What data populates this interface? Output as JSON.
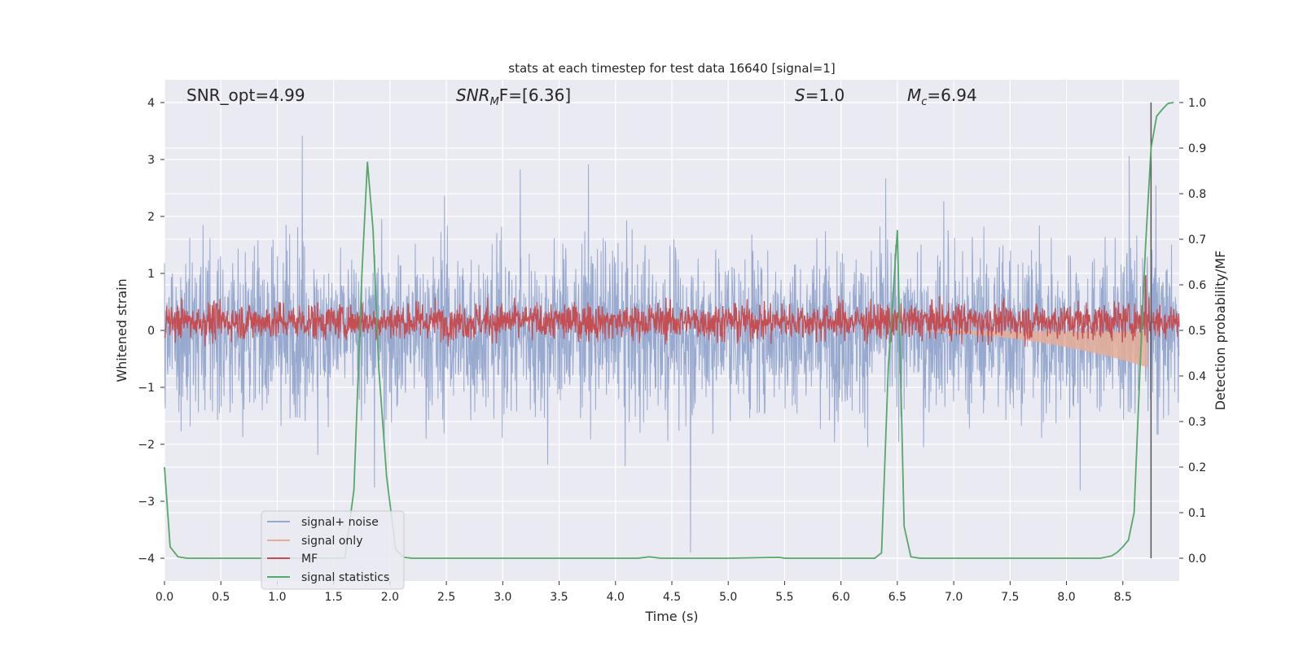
{
  "chart_data": {
    "type": "line",
    "title": "stats at each timestep for test data 16640 [signal=1]",
    "xlabel": "Time (s)",
    "ylabel_left": "Whitened strain",
    "ylabel_right": "Detection probability/MF",
    "xlim": [
      0.0,
      9.0
    ],
    "ylim_left": [
      -4.4,
      4.4
    ],
    "ylim_right": [
      -0.05,
      1.05
    ],
    "xticks": [
      0.0,
      0.5,
      1.0,
      1.5,
      2.0,
      2.5,
      3.0,
      3.5,
      4.0,
      4.5,
      5.0,
      5.5,
      6.0,
      6.5,
      7.0,
      7.5,
      8.0,
      8.5
    ],
    "xtick_labels": [
      "0.0",
      "0.5",
      "1.0",
      "1.5",
      "2.0",
      "2.5",
      "3.0",
      "3.5",
      "4.0",
      "4.5",
      "5.0",
      "5.5",
      "6.0",
      "6.5",
      "7.0",
      "7.5",
      "8.0",
      "8.5"
    ],
    "yticks_left": [
      4,
      3,
      2,
      1,
      0,
      -1,
      -2,
      -3,
      -4
    ],
    "ytick_labels_left": [
      "4",
      "3",
      "2",
      "1",
      "0",
      "−1",
      "−2",
      "−3",
      "−4"
    ],
    "yticks_right": [
      1.0,
      0.9,
      0.8,
      0.7,
      0.6,
      0.5,
      0.4,
      0.3,
      0.2,
      0.1,
      0.0
    ],
    "ytick_labels_right": [
      "1.0",
      "0.9",
      "0.8",
      "0.7",
      "0.6",
      "0.5",
      "0.4",
      "0.3",
      "0.2",
      "0.1",
      "0.0"
    ],
    "grid": true,
    "legend_position": "lower-left",
    "annotations": [
      {
        "text": "SNR_opt=4.99"
      },
      {
        "text": "SNR",
        "italic": true,
        "sub": "M",
        "rest": "F=[6.36]"
      },
      {
        "text": "S",
        "italic": true,
        "rest": "=1.0"
      },
      {
        "text": "M",
        "italic": true,
        "sub": "c",
        "rest": "=6.94"
      }
    ],
    "series": [
      {
        "name": "signal+ noise",
        "color": "#97a9cf",
        "axis": "left",
        "kind": "noise",
        "envelope_typical": [
          -1.5,
          1.8
        ],
        "extremes": [
          -3.9,
          4.0
        ]
      },
      {
        "name": "signal only",
        "color": "#e6ae98",
        "axis": "left",
        "kind": "chirp",
        "x_start": 6.0,
        "x_end": 8.72,
        "min_value": -0.65
      },
      {
        "name": "MF",
        "color": "#c44e52",
        "axis": "right",
        "kind": "noise",
        "mean": 0.52,
        "spread": 0.03,
        "spike": {
          "x": 8.7,
          "y": 0.62
        }
      },
      {
        "name": "signal statistics",
        "color": "#55a868",
        "axis": "right",
        "kind": "line",
        "x": [
          0.0,
          0.05,
          0.12,
          0.2,
          1.6,
          1.68,
          1.75,
          1.8,
          1.85,
          1.9,
          1.97,
          2.05,
          2.12,
          2.2,
          4.2,
          4.3,
          4.4,
          5.0,
          5.45,
          5.5,
          6.3,
          6.36,
          6.42,
          6.5,
          6.56,
          6.62,
          6.7,
          8.3,
          8.4,
          8.45,
          8.5,
          8.55,
          8.6,
          8.65,
          8.7,
          8.75,
          8.8,
          8.85,
          8.9,
          8.95
        ],
        "y": [
          0.2,
          0.025,
          0.003,
          0.0,
          0.0,
          0.15,
          0.62,
          0.87,
          0.72,
          0.42,
          0.18,
          0.02,
          0.002,
          0.0,
          0.0,
          0.003,
          0.0,
          0.0,
          0.002,
          0.0,
          0.0,
          0.012,
          0.42,
          0.72,
          0.07,
          0.003,
          0.0,
          0.0,
          0.005,
          0.013,
          0.025,
          0.04,
          0.1,
          0.4,
          0.68,
          0.9,
          0.97,
          0.985,
          0.998,
          1.0
        ]
      }
    ],
    "vertical_line": {
      "x": 8.75,
      "color": "#555555"
    }
  }
}
